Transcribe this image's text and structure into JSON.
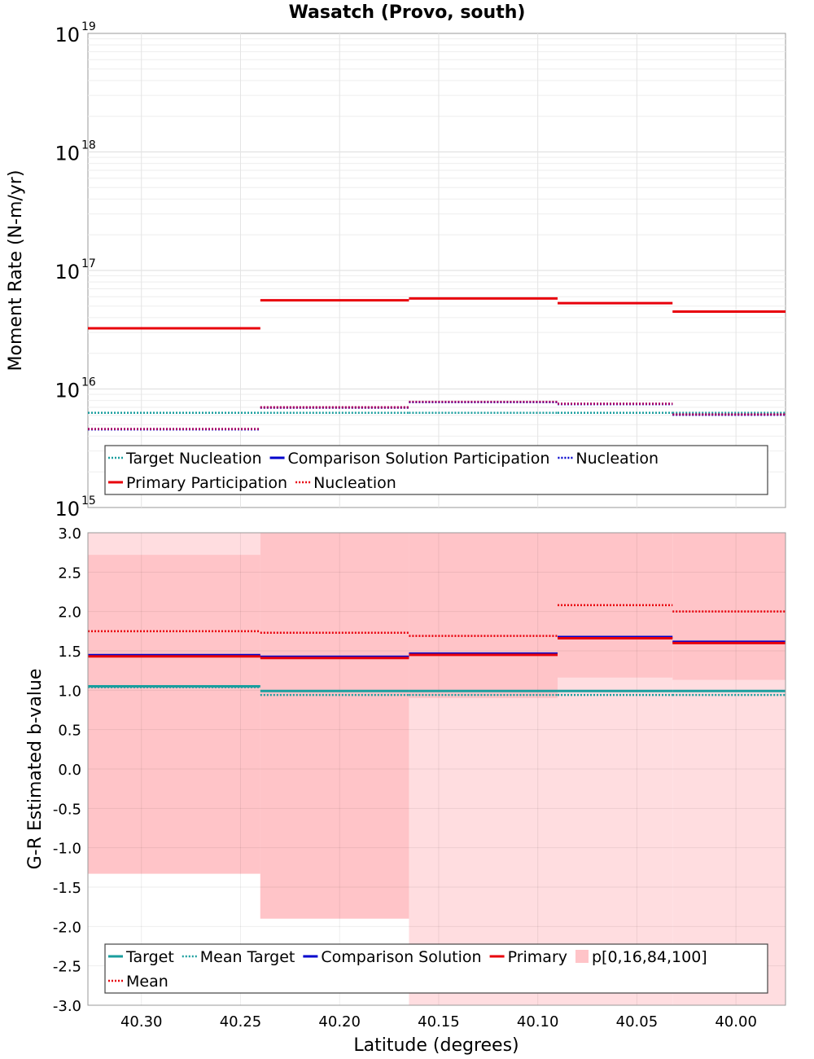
{
  "title": "Wasatch (Provo, south)",
  "xlabel": "Latitude (degrees)",
  "x_ticks": [
    "40.30",
    "40.25",
    "40.20",
    "40.15",
    "40.10",
    "40.05",
    "40.00"
  ],
  "colors": {
    "target": "#1a9e9e",
    "comparison": "#0000cc",
    "primary": "#e8000b",
    "primary_band_outer": "#ffdde0",
    "primary_band_inner": "#ffc4c8"
  },
  "chart_data": [
    {
      "type": "line",
      "subplot": "top",
      "ylabel": "Moment Rate (N-m/yr)",
      "yscale": "log",
      "ylim": [
        1000000000000000.0,
        1e+19
      ],
      "y_ticks": [
        {
          "base": "10",
          "exp": "15"
        },
        {
          "base": "10",
          "exp": "16"
        },
        {
          "base": "10",
          "exp": "17"
        },
        {
          "base": "10",
          "exp": "18"
        },
        {
          "base": "10",
          "exp": "19"
        }
      ],
      "xlim": [
        40.327,
        39.975
      ],
      "x_reversed": true,
      "grid": true,
      "legend_position": "bottom",
      "bin_edges": [
        40.327,
        40.24,
        40.165,
        40.09,
        40.032,
        39.975
      ],
      "series": [
        {
          "key": "target_nucleation",
          "values": [
            6300000000000000.0,
            6300000000000000.0,
            6300000000000000.0,
            6300000000000000.0,
            6300000000000000.0
          ],
          "style": "dotted",
          "color": "#1a9e9e"
        },
        {
          "key": "primary_participation",
          "values": [
            3.25e+16,
            5.6e+16,
            5.8e+16,
            5.3e+16,
            4.5e+16
          ],
          "style": "solid",
          "color": "#e8000b"
        },
        {
          "key": "primary_nucleation",
          "values": [
            4600000000000000.0,
            7000000000000000.0,
            7800000000000000.0,
            7500000000000000.0,
            6100000000000000.0
          ],
          "style": "dotted",
          "color": "#e8000b"
        },
        {
          "key": "comparison_nucleation",
          "values": [
            4600000000000000.0,
            7000000000000000.0,
            7800000000000000.0,
            7500000000000000.0,
            6100000000000000.0
          ],
          "style": "dotted",
          "color": "#0000cc"
        }
      ],
      "legend": [
        {
          "label": "Target Nucleation",
          "color": "#1a9e9e",
          "style": "dotted"
        },
        {
          "label": "Comparison Solution Participation",
          "color": "#0000cc",
          "style": "solid"
        },
        {
          "label": "Nucleation",
          "color": "#0000cc",
          "style": "dotted"
        },
        {
          "label": "Primary Participation",
          "color": "#e8000b",
          "style": "solid"
        },
        {
          "label": "Nucleation",
          "color": "#e8000b",
          "style": "dotted"
        }
      ]
    },
    {
      "type": "line",
      "subplot": "bottom",
      "ylabel": "G-R Estimated b-value",
      "ylim": [
        -3.0,
        3.0
      ],
      "y_ticks": [
        "-3.0",
        "-2.5",
        "-2.0",
        "-1.5",
        "-1.0",
        "-0.5",
        "0.0",
        "0.5",
        "1.0",
        "1.5",
        "2.0",
        "2.5",
        "3.0"
      ],
      "xlim": [
        40.327,
        39.975
      ],
      "x_reversed": true,
      "grid": true,
      "legend_position": "bottom",
      "bin_edges": [
        40.327,
        40.24,
        40.165,
        40.09,
        40.032,
        39.975
      ],
      "band_outer": [
        [
          -1.33,
          3.0
        ],
        [
          -1.9,
          3.0
        ],
        [
          -3.0,
          3.0
        ],
        [
          -3.0,
          1.16
        ],
        [
          -3.0,
          1.13
        ]
      ],
      "band_inner": [
        [
          -1.33,
          2.72
        ],
        [
          -1.9,
          3.0
        ],
        [
          0.9,
          3.0
        ],
        [
          1.16,
          3.0
        ],
        [
          1.13,
          3.0
        ]
      ],
      "series": [
        {
          "key": "target",
          "values": [
            1.05,
            0.99,
            0.99,
            0.99,
            0.99
          ],
          "style": "solid",
          "color": "#1a9e9e"
        },
        {
          "key": "mean_target",
          "values": [
            1.04,
            0.94,
            0.94,
            0.94,
            0.94
          ],
          "style": "dotted",
          "color": "#1a9e9e"
        },
        {
          "key": "comparison_solution",
          "values": [
            1.43,
            1.41,
            1.45,
            1.66,
            1.6
          ],
          "style": "solid",
          "color": "#0000cc"
        },
        {
          "key": "primary",
          "values": [
            1.43,
            1.41,
            1.45,
            1.66,
            1.6
          ],
          "style": "solid",
          "color": "#e8000b"
        },
        {
          "key": "mean",
          "values": [
            1.75,
            1.73,
            1.69,
            2.08,
            2.0
          ],
          "style": "dotted",
          "color": "#e8000b"
        }
      ],
      "legend": [
        {
          "label": "Target",
          "color": "#1a9e9e",
          "style": "solid"
        },
        {
          "label": "Mean Target",
          "color": "#1a9e9e",
          "style": "dotted"
        },
        {
          "label": "Comparison Solution",
          "color": "#0000cc",
          "style": "solid"
        },
        {
          "label": "Primary",
          "color": "#e8000b",
          "style": "solid"
        },
        {
          "label": "p[0,16,84,100]",
          "color": "#ffc4c8",
          "style": "box"
        },
        {
          "label": "Mean",
          "color": "#e8000b",
          "style": "dotted"
        }
      ]
    }
  ]
}
